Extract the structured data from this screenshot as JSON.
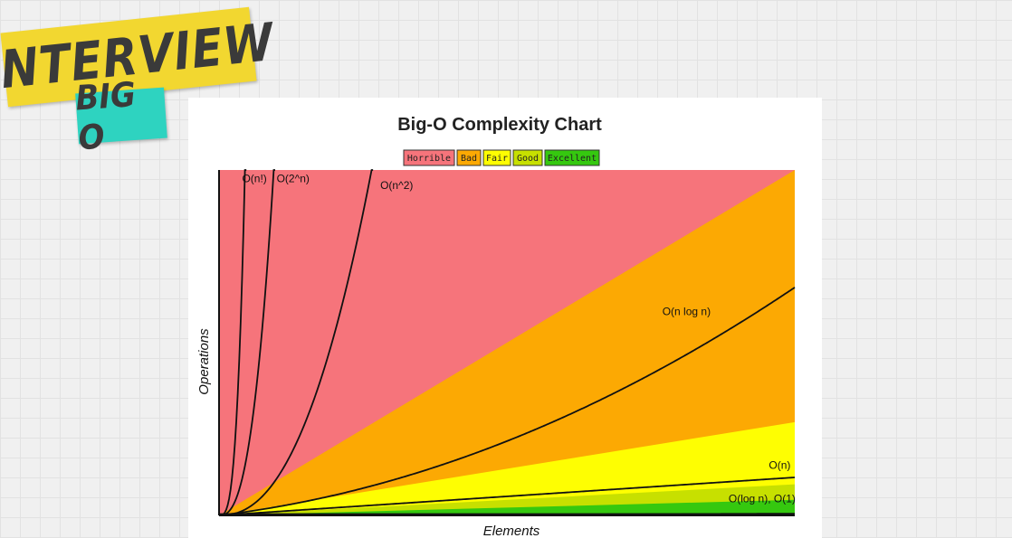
{
  "badge": {
    "line1": "INTERVIEW",
    "line2": "BIG O"
  },
  "colors": {
    "horrible": "#f6747b",
    "bad": "#fca903",
    "fair": "#fefe02",
    "good": "#c7e000",
    "excellent": "#35c80f",
    "curve": "#111111",
    "badge_yellow": "#f2d730",
    "badge_teal": "#2ed3c0"
  },
  "chart_data": {
    "type": "line",
    "title": "Big-O Complexity Chart",
    "xlabel": "Elements",
    "ylabel": "Operations",
    "legend": {
      "placement": "top-center",
      "entries": [
        {
          "label": "Horrible",
          "color": "#f6747b"
        },
        {
          "label": "Bad",
          "color": "#fca903"
        },
        {
          "label": "Fair",
          "color": "#fefe02"
        },
        {
          "label": "Good",
          "color": "#c7e000"
        },
        {
          "label": "Excellent",
          "color": "#35c80f"
        }
      ]
    },
    "series": [
      {
        "name": "O(n!)",
        "label": "O(n!)"
      },
      {
        "name": "O(2^n)",
        "label": "O(2^n)"
      },
      {
        "name": "O(n^2)",
        "label": "O(n^2)"
      },
      {
        "name": "O(n log n)",
        "label": "O(n log n)"
      },
      {
        "name": "O(n)",
        "label": "O(n)"
      },
      {
        "name": "O(log n)",
        "label": "O(log n), O(1)"
      }
    ],
    "grid": false
  }
}
